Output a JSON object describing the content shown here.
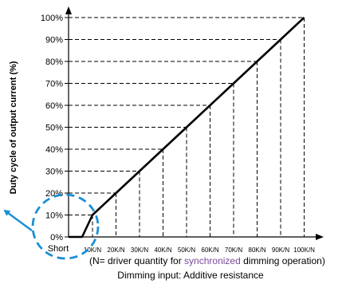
{
  "chart_data": {
    "type": "line",
    "title": "",
    "ylabel": "Duty cycle of output current (%)",
    "xlabel": "Dimming input: Additive resistance",
    "x_note_prefix": "(N= driver quantity for ",
    "x_note_highlight": "synchronized",
    "x_note_suffix": " dimming operation)",
    "y_ticks": [
      "0%",
      "10%",
      "20%",
      "30%",
      "40%",
      "50%",
      "60%",
      "70%",
      "80%",
      "90%",
      "100%"
    ],
    "x_ticks": [
      "Short",
      "10K/N",
      "20K/N",
      "30K/N",
      "40K/N",
      "50K/N",
      "60K/N",
      "70K/N",
      "80K/N",
      "90K/N",
      "100K/N"
    ],
    "ylim": [
      0,
      100
    ],
    "grid": "dashed",
    "series": [
      {
        "x": [
          "Short",
          "Short",
          "10K/N",
          "20K/N",
          "30K/N",
          "40K/N",
          "50K/N",
          "60K/N",
          "70K/N",
          "80K/N",
          "90K/N",
          "100K/N"
        ],
        "y": [
          0,
          0,
          10,
          20,
          30,
          40,
          50,
          60,
          70,
          80,
          90,
          100
        ]
      }
    ],
    "annotation": "dashed circle marking the 0%–10% region near Short"
  },
  "colors": {
    "line": "#000000",
    "highlight_circle": "#1a8fd6",
    "highlight_text": "#7a4a9a"
  }
}
